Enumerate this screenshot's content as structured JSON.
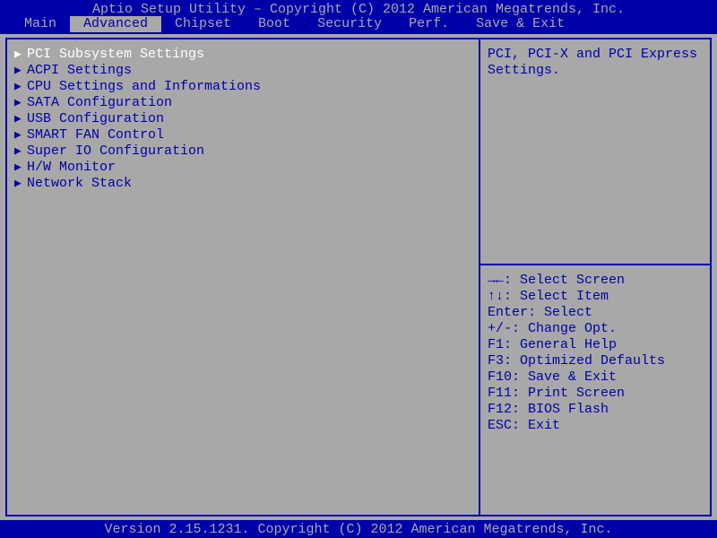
{
  "colors": {
    "background_blue": "#0000a8",
    "panel_gray": "#a8a8a8",
    "text_teal": "#00a8a8",
    "text_dark_blue": "#0000a8",
    "selected_white": "#ffffff"
  },
  "header": {
    "title": "Aptio Setup Utility – Copyright (C) 2012 American Megatrends, Inc.",
    "tabs": [
      {
        "label": " Main ",
        "active": false
      },
      {
        "label": " Advanced ",
        "active": true
      },
      {
        "label": " Chipset ",
        "active": false
      },
      {
        "label": " Boot ",
        "active": false
      },
      {
        "label": " Security ",
        "active": false
      },
      {
        "label": " Perf. ",
        "active": false
      },
      {
        "label": " Save & Exit ",
        "active": false
      }
    ]
  },
  "menu": {
    "items": [
      {
        "label": "PCI Subsystem Settings",
        "selected": true
      },
      {
        "label": "ACPI Settings",
        "selected": false
      },
      {
        "label": "CPU Settings and Informations",
        "selected": false
      },
      {
        "label": "SATA Configuration",
        "selected": false
      },
      {
        "label": "USB Configuration",
        "selected": false
      },
      {
        "label": "SMART FAN Control",
        "selected": false
      },
      {
        "label": "Super IO Configuration",
        "selected": false
      },
      {
        "label": "H/W Monitor",
        "selected": false
      },
      {
        "label": "Network Stack",
        "selected": false
      }
    ]
  },
  "help": {
    "description_line1": "PCI, PCI-X and PCI Express",
    "description_line2": "Settings.",
    "keys": [
      "→←: Select Screen",
      "↑↓: Select Item",
      "Enter: Select",
      "+/-: Change Opt.",
      "F1: General Help",
      "F3: Optimized Defaults",
      "F10: Save & Exit",
      "F11: Print Screen",
      "F12: BIOS Flash",
      "ESC: Exit"
    ]
  },
  "footer": {
    "text": "Version 2.15.1231. Copyright (C) 2012 American Megatrends, Inc."
  }
}
